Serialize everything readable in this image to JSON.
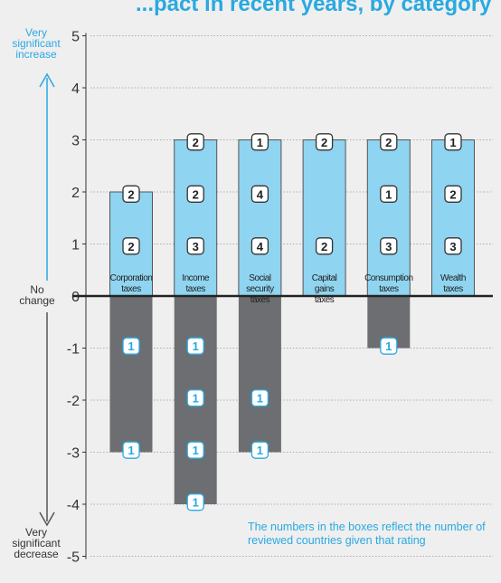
{
  "title": "...pact in recent years, by category",
  "labels": {
    "top": "Very significant increase",
    "middle": "No change",
    "bottom": "Very significant decrease"
  },
  "note": "The numbers in the boxes reflect the number of reviewed countries given that rating",
  "colors": {
    "positive_bar": "#8fd4f0",
    "negative_bar": "#6d6e71",
    "accent": "#29a9e1",
    "background": "#efefef"
  },
  "chart_data": {
    "type": "bar",
    "ylim": [
      -5,
      5
    ],
    "yticks": [
      -5,
      -4,
      -3,
      -2,
      -1,
      0,
      1,
      2,
      3,
      4,
      5
    ],
    "grid": "horizontal dashed",
    "categories": [
      "Corporation taxes",
      "Income taxes",
      "Social security taxes",
      "Capital gains taxes",
      "Consumption taxes",
      "Wealth taxes"
    ],
    "category_lines": [
      [
        "Corporation",
        "taxes"
      ],
      [
        "Income",
        "taxes"
      ],
      [
        "Social",
        "security",
        "taxes"
      ],
      [
        "Capital",
        "gains",
        "taxes"
      ],
      [
        "Consumption",
        "taxes"
      ],
      [
        "Wealth",
        "taxes"
      ]
    ],
    "series": [
      {
        "values": [
          2,
          3,
          3,
          3,
          3,
          3
        ]
      },
      {
        "values": [
          -3,
          -4,
          -3,
          0,
          -1,
          0
        ]
      }
    ],
    "rating_counts": [
      {
        "1": 2,
        "2": 2,
        "-1": 1,
        "-3": 1
      },
      {
        "1": 3,
        "2": 2,
        "3": 2,
        "-1": 1,
        "-2": 1,
        "-3": 1,
        "-4": 1
      },
      {
        "1": 4,
        "2": 4,
        "3": 1,
        "-2": 1,
        "-3": 1
      },
      {
        "1": 2,
        "3": 2
      },
      {
        "1": 3,
        "2": 1,
        "3": 2,
        "-1": 1
      },
      {
        "1": 3,
        "2": 2,
        "3": 1
      }
    ]
  }
}
